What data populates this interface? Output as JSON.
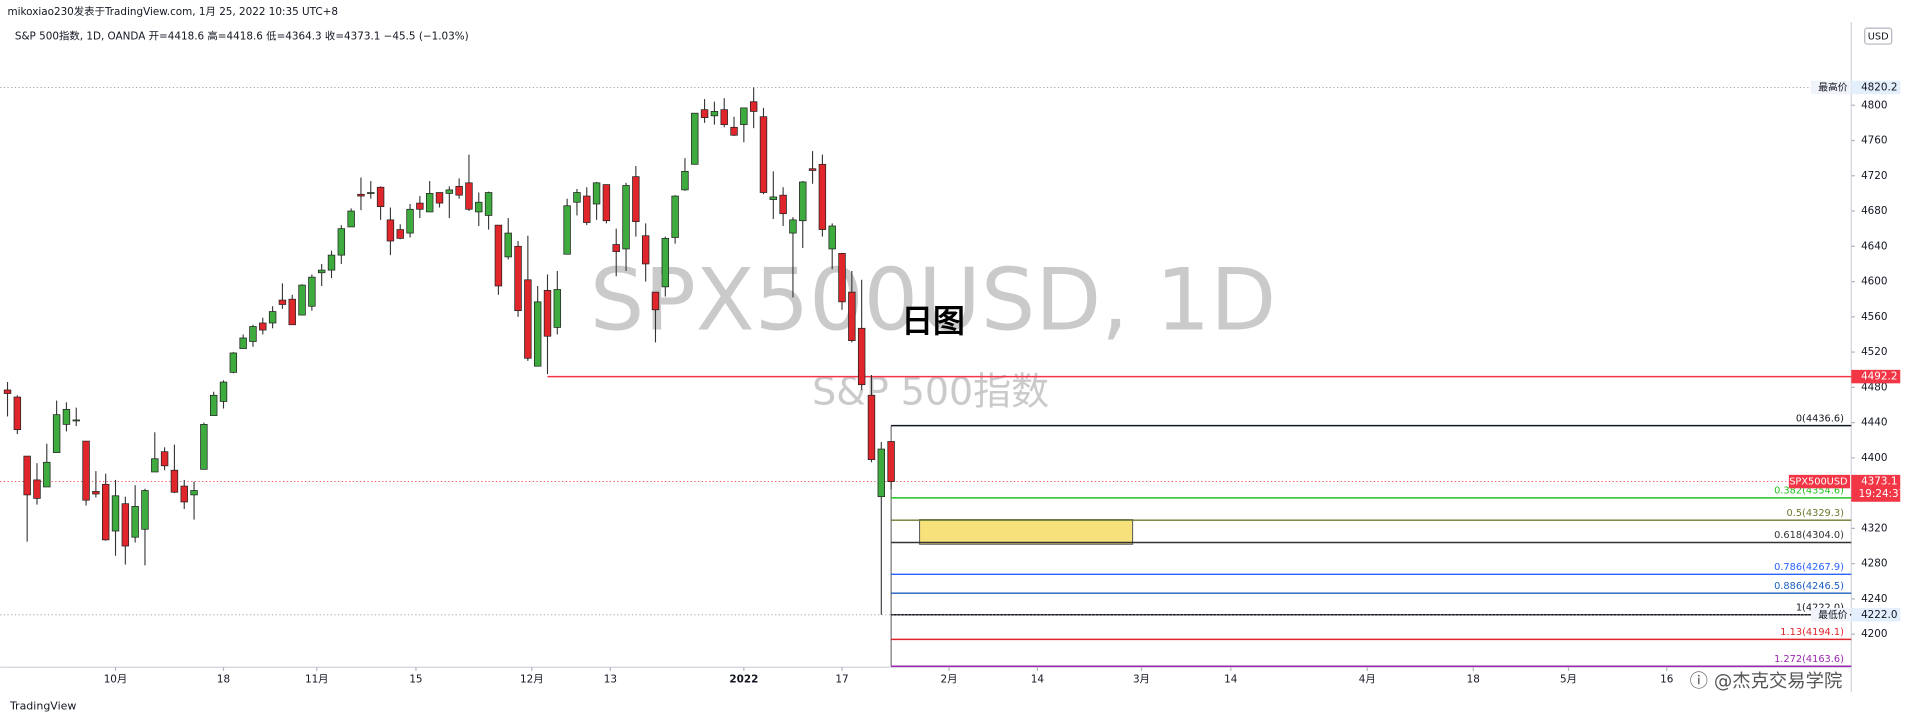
{
  "chart_data": {
    "type": "candlestick",
    "header": "mikoxiao230发表于TradingView.com, 1月 25, 2022 10:35 UTC+8",
    "legend_text": "S&P 500指数, 1D, OANDA  开=4418.6  高=4418.6  低=4364.3  收=4373.1  −45.5 (−1.03%)",
    "watermark": "SPX500USD, 1D",
    "watermark_sub": "S&P 500指数",
    "annotation": "日图",
    "currency": "USD",
    "footer_left": "TradingView",
    "footer_right": "ⓘ @杰克交易学院",
    "up_color": "#3dab3d",
    "down_color": "#e0262b",
    "ylim": [
      4162.5,
      4894.4
    ],
    "yticks": [
      4200,
      4240,
      4280,
      4320,
      4360,
      4400,
      4440,
      4480,
      4520,
      4560,
      4600,
      4640,
      4680,
      4720,
      4760,
      4800
    ],
    "xlim": [
      -0.75,
      187.8
    ],
    "xticks": [
      {
        "value": 11,
        "label": "10月"
      },
      {
        "value": 22,
        "label": "18"
      },
      {
        "value": 31.5,
        "label": "11月"
      },
      {
        "value": 41.6,
        "label": "15"
      },
      {
        "value": 53.4,
        "label": "12月"
      },
      {
        "value": 61.4,
        "label": "13"
      },
      {
        "value": 75,
        "label": "2022"
      },
      {
        "value": 85,
        "label": "17"
      },
      {
        "value": 95.9,
        "label": "2月"
      },
      {
        "value": 104.9,
        "label": "14"
      },
      {
        "value": 115.5,
        "label": "3月"
      },
      {
        "value": 124.6,
        "label": "14"
      },
      {
        "value": 138.5,
        "label": "4月"
      },
      {
        "value": 149.3,
        "label": "18"
      },
      {
        "value": 159,
        "label": "5月"
      },
      {
        "value": 169,
        "label": "16"
      }
    ],
    "open": [
      4477,
      4469,
      4402,
      4375,
      4367,
      4406,
      4438,
      4442,
      4419,
      4362,
      4370,
      4317,
      4348,
      4310,
      4319,
      4384,
      4407,
      4386,
      4368,
      4358,
      4387,
      4448,
      4464,
      4497,
      4524,
      4532,
      4553,
      4553,
      4579,
      4580,
      4562,
      4572,
      4610,
      4613,
      4630,
      4662,
      4699,
      4701,
      4707,
      4670,
      4659,
      4655,
      4689,
      4679,
      4701,
      4700,
      4708,
      4712,
      4679,
      4675,
      4664,
      4628,
      4640,
      4602,
      4504,
      4590,
      4548,
      4631,
      4690,
      4697,
      4688,
      4710,
      4642,
      4637,
      4719,
      4652,
      4588,
      4594,
      4650,
      4704,
      4733,
      4795,
      4788,
      4795,
      4775,
      4778,
      4804,
      4787,
      4693,
      4698,
      4655,
      4669,
      4728,
      4733,
      4637,
      4632,
      4588,
      4547,
      4471,
      4356,
      4418.6
    ],
    "high": [
      4486,
      4471,
      4402,
      4394,
      4416,
      4465,
      4463,
      4457,
      4419,
      4385,
      4382,
      4375,
      4356,
      4369,
      4365,
      4429,
      4412,
      4415,
      4375,
      4373,
      4440,
      4475,
      4488,
      4520,
      4540,
      4551,
      4559,
      4572,
      4598,
      4585,
      4597,
      4608,
      4620,
      4635,
      4664,
      4683,
      4718,
      4714,
      4708,
      4684,
      4665,
      4688,
      4697,
      4714,
      4701,
      4708,
      4717,
      4744,
      4701,
      4702,
      4664,
      4672,
      4646,
      4652,
      4595,
      4608,
      4612,
      4694,
      4705,
      4707,
      4713,
      4710,
      4660,
      4712,
      4731,
      4666,
      4588,
      4651,
      4698,
      4740,
      4791,
      4807,
      4804,
      4808,
      4787,
      4797,
      4820.2,
      4797,
      4725,
      4707,
      4673,
      4714,
      4748,
      4744,
      4666,
      4632,
      4612,
      4602,
      4494,
      4418,
      4418.6
    ],
    "low": [
      4447,
      4427,
      4305,
      4347,
      4367,
      4406,
      4430,
      4436,
      4346,
      4355,
      4306,
      4289,
      4279,
      4304,
      4278,
      4384,
      4386,
      4360,
      4342,
      4330,
      4387,
      4448,
      4456,
      4496,
      4524,
      4526,
      4540,
      4547,
      4569,
      4551,
      4562,
      4567,
      4595,
      4604,
      4620,
      4662,
      4681,
      4694,
      4670,
      4630,
      4648,
      4650,
      4672,
      4679,
      4684,
      4672,
      4694,
      4680,
      4663,
      4659,
      4585,
      4625,
      4560,
      4510,
      4504,
      4495,
      4540,
      4631,
      4675,
      4664,
      4670,
      4666,
      4606,
      4612,
      4651,
      4600,
      4531,
      4583,
      4643,
      4703,
      4733,
      4780,
      4778,
      4775,
      4765,
      4758,
      4774,
      4699,
      4671,
      4663,
      4582,
      4638,
      4711,
      4651,
      4614,
      4568,
      4531,
      4477,
      4395,
      4222,
      4364.3
    ],
    "close": [
      4473,
      4432,
      4358,
      4354,
      4395,
      4449,
      4455,
      4443,
      4352,
      4359,
      4307,
      4357,
      4300,
      4345,
      4363,
      4399,
      4391,
      4361,
      4350,
      4363,
      4438,
      4471,
      4486,
      4519,
      4536,
      4549,
      4545,
      4566,
      4574,
      4551,
      4596,
      4605,
      4613,
      4630,
      4660,
      4680,
      4697,
      4701,
      4685,
      4646,
      4649,
      4682,
      4682,
      4700,
      4689,
      4704,
      4698,
      4682,
      4690,
      4701,
      4595,
      4655,
      4567,
      4513,
      4577,
      4538,
      4591,
      4686,
      4701,
      4667,
      4712,
      4669,
      4634,
      4709,
      4668,
      4620,
      4568,
      4649,
      4697,
      4725,
      4791,
      4786,
      4793,
      4778,
      4766,
      4797,
      4793,
      4701,
      4696,
      4677,
      4670,
      4713,
      4726,
      4659,
      4663,
      4577,
      4533,
      4483,
      4398,
      4410,
      4373.1
    ],
    "resistance": {
      "value": 4492.2,
      "start": 55,
      "color": "#f23645"
    },
    "zone": {
      "x": [
        92.9,
        114.6
      ],
      "y": [
        4302,
        4330
      ],
      "color": "#f7e17a"
    },
    "fib": {
      "start": 90,
      "levels": [
        {
          "value": 4436.6,
          "label": "0(4436.6)",
          "color": "#131722"
        },
        {
          "value": 4354.6,
          "label": "0.382(4354.6)",
          "color": "#22c322"
        },
        {
          "value": 4329.3,
          "label": "0.5(4329.3)",
          "color": "#6a7a30"
        },
        {
          "value": 4304.0,
          "label": "0.618(4304.0)",
          "color": "#333333"
        },
        {
          "value": 4267.9,
          "label": "0.786(4267.9)",
          "color": "#2962ff"
        },
        {
          "value": 4246.5,
          "label": "0.886(4246.5)",
          "color": "#1c5fc0"
        },
        {
          "value": 4222.0,
          "label": "1(4222.0)",
          "color": "#131722"
        },
        {
          "value": 4194.1,
          "label": "1.13(4194.1)",
          "color": "#e0262b"
        },
        {
          "value": 4163.6,
          "label": "1.272(4163.6)",
          "color": "#9c27b0"
        }
      ]
    },
    "price_markers": [
      {
        "tag": "最高价",
        "value": 4820.2,
        "label": "4820.2",
        "color": "#e3effd",
        "text_color": "#131722",
        "line": "#999999"
      },
      {
        "value": 4492.2,
        "label": "4492.2",
        "color": "#f23645",
        "text_color": "#ffffff"
      },
      {
        "tag": "SPX500USD",
        "value": 4373.1,
        "label": "4373.1",
        "countdown": "19:24:37",
        "color": "#f23645",
        "text_color": "#ffffff",
        "line": "#f23645"
      },
      {
        "tag": "最低价",
        "value": 4222.0,
        "label": "4222.0",
        "color": "#e3effd",
        "text_color": "#131722",
        "line": "#999999"
      }
    ]
  }
}
